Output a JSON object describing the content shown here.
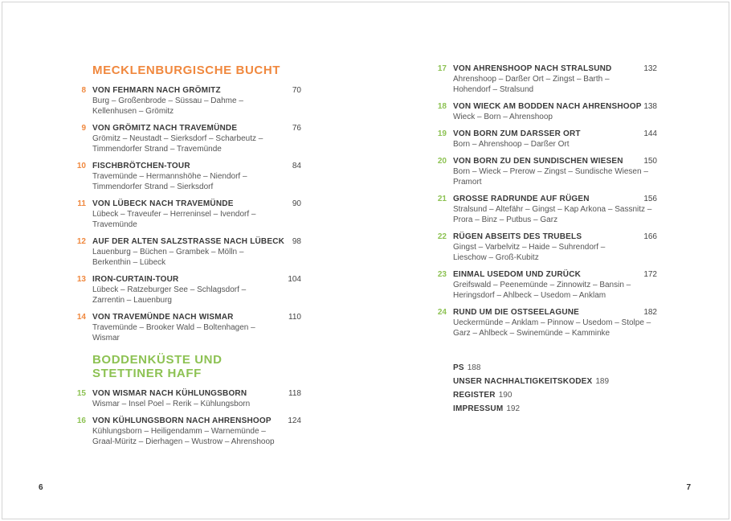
{
  "colors": {
    "section1_accent": "#F0883E",
    "section2_accent": "#8DC253",
    "title_text": "#3A3A3A",
    "route_text": "#555555",
    "border": "#D4D4D4"
  },
  "left_page": {
    "folio": "6",
    "sections": [
      {
        "heading": "MECKLENBURGISCHE BUCHT",
        "accent": "#F0883E",
        "entries": [
          {
            "num": "8",
            "title": "VON FEHMARN NACH GRÖMITZ",
            "route": "Burg – Großenbrode – Süssau – Dahme –\nKellenhusen – Grömitz",
            "page": "70"
          },
          {
            "num": "9",
            "title": "VON GRÖMITZ NACH TRAVEMÜNDE",
            "route": "Grömitz – Neustadt – Sierksdorf – Scharbeutz –\nTimmendorfer Strand – Travemünde",
            "page": "76"
          },
          {
            "num": "10",
            "title": "FISCHBRÖTCHEN-TOUR",
            "route": "Travemünde – Hermannshöhe – Niendorf –\nTimmendorfer Strand – Sierksdorf",
            "page": "84"
          },
          {
            "num": "11",
            "title": "VON LÜBECK NACH TRAVEMÜNDE",
            "route": "Lübeck – Traveufer – Herreninsel – Ivendorf –\nTravemünde",
            "page": "90"
          },
          {
            "num": "12",
            "title": "AUF DER ALTEN SALZSTRASSE NACH LÜBECK",
            "route": "Lauenburg – Büchen – Grambek – Mölln –\nBerkenthin – Lübeck",
            "page": "98"
          },
          {
            "num": "13",
            "title": "IRON-CURTAIN-TOUR",
            "route": "Lübeck – Ratzeburger See – Schlagsdorf –\nZarrentin – Lauenburg",
            "page": "104"
          },
          {
            "num": "14",
            "title": "VON TRAVEMÜNDE NACH WISMAR",
            "route": "Travemünde – Brooker Wald – Boltenhagen –\nWismar",
            "page": "110"
          }
        ]
      },
      {
        "heading": "BODDENKÜSTE UND\nSTETTINER HAFF",
        "accent": "#8DC253",
        "entries": [
          {
            "num": "15",
            "title": "VON WISMAR NACH KÜHLUNGSBORN",
            "route": "Wismar – Insel Poel – Rerik – Kühlungsborn",
            "page": "118"
          },
          {
            "num": "16",
            "title": "VON KÜHLUNGSBORN NACH AHRENSHOOP",
            "route": "Kühlungsborn – Heiligendamm – Warnemünde –\nGraal-Müritz – Dierhagen – Wustrow – Ahrenshoop",
            "page": "124"
          }
        ]
      }
    ]
  },
  "right_page": {
    "folio": "7",
    "sections": [
      {
        "heading": "",
        "accent": "#8DC253",
        "entries": [
          {
            "num": "17",
            "title": "VON AHRENSHOOP NACH STRALSUND",
            "route": "Ahrenshoop – Darßer Ort – Zingst – Barth –\nHohendorf – Stralsund",
            "page": "132"
          },
          {
            "num": "18",
            "title": "VON WIECK AM BODDEN NACH AHRENSHOOP",
            "route": "Wieck – Born – Ahrenshoop",
            "page": "138"
          },
          {
            "num": "19",
            "title": "VON BORN ZUM DARSSER ORT",
            "route": "Born – Ahrenshoop – Darßer Ort",
            "page": "144"
          },
          {
            "num": "20",
            "title": "VON BORN ZU DEN SUNDISCHEN WIESEN",
            "route": "Born – Wieck – Prerow – Zingst – Sundische Wiesen –\nPramort",
            "page": "150"
          },
          {
            "num": "21",
            "title": "GROSSE RADRUNDE AUF RÜGEN",
            "route": "Stralsund – Altefähr – Gingst – Kap Arkona – Sassnitz –\nProra – Binz – Putbus – Garz",
            "page": "156"
          },
          {
            "num": "22",
            "title": "RÜGEN ABSEITS DES TRUBELS",
            "route": "Gingst – Varbelvitz – Haide – Suhrendorf –\nLieschow – Groß-Kubitz",
            "page": "166"
          },
          {
            "num": "23",
            "title": "EINMAL USEDOM UND ZURÜCK",
            "route": "Greifswald – Peenemünde – Zinnowitz – Bansin –\nHeringsdorf – Ahlbeck – Usedom – Anklam",
            "page": "172"
          },
          {
            "num": "24",
            "title": "RUND UM DIE OSTSEELAGUNE",
            "route": "Ueckermünde – Anklam – Pinnow – Usedom – Stolpe –\nGarz – Ahlbeck – Swinemünde – Kamminke",
            "page": "182"
          }
        ]
      }
    ],
    "footer_links": [
      {
        "label": "PS",
        "page": "188"
      },
      {
        "label": "UNSER NACHHALTIGKEITSKODEX",
        "page": "189"
      },
      {
        "label": "REGISTER",
        "page": "190"
      },
      {
        "label": "IMPRESSUM",
        "page": "192"
      }
    ]
  }
}
